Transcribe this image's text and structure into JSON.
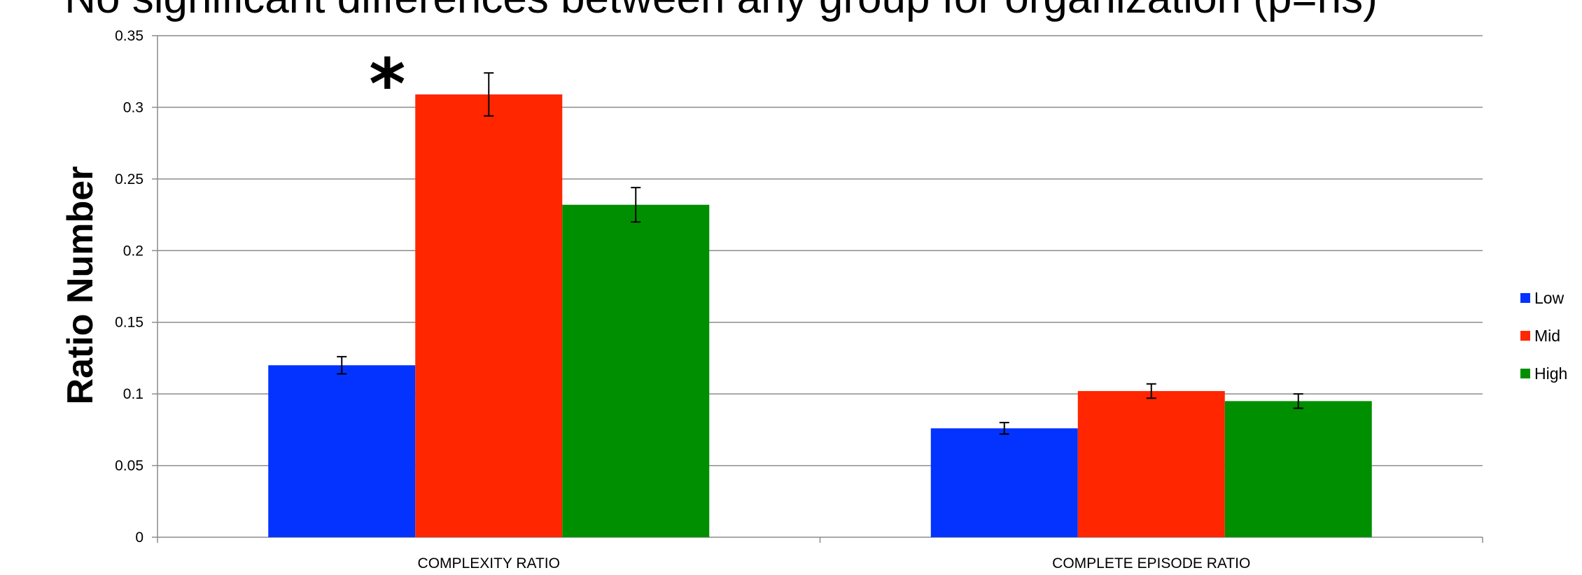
{
  "chart_data": {
    "type": "bar",
    "title": "No significant differences between any group for organization (p=ns)",
    "xlabel": "",
    "ylabel": "Ratio Number",
    "ylim": [
      0,
      0.35
    ],
    "yticks": [
      "0",
      "0.05",
      "0.1",
      "0.15",
      "0.2",
      "0.25",
      "0.3",
      "0.35"
    ],
    "grid": true,
    "legend_position": "right",
    "categories": [
      "COMPLEXITY RATIO",
      "COMPLETE EPISODE RATIO"
    ],
    "series": [
      {
        "name": "Low",
        "color": "#0433ff",
        "values": [
          0.12,
          0.076
        ],
        "errors": [
          0.006,
          0.004
        ]
      },
      {
        "name": "Mid",
        "color": "#ff2600",
        "values": [
          0.309,
          0.102
        ],
        "errors": [
          0.015,
          0.005
        ]
      },
      {
        "name": "High",
        "color": "#008f00",
        "values": [
          0.232,
          0.095
        ],
        "errors": [
          0.012,
          0.005
        ]
      }
    ],
    "annotations": [
      {
        "text": "*",
        "category": 0,
        "series": 1
      }
    ]
  }
}
